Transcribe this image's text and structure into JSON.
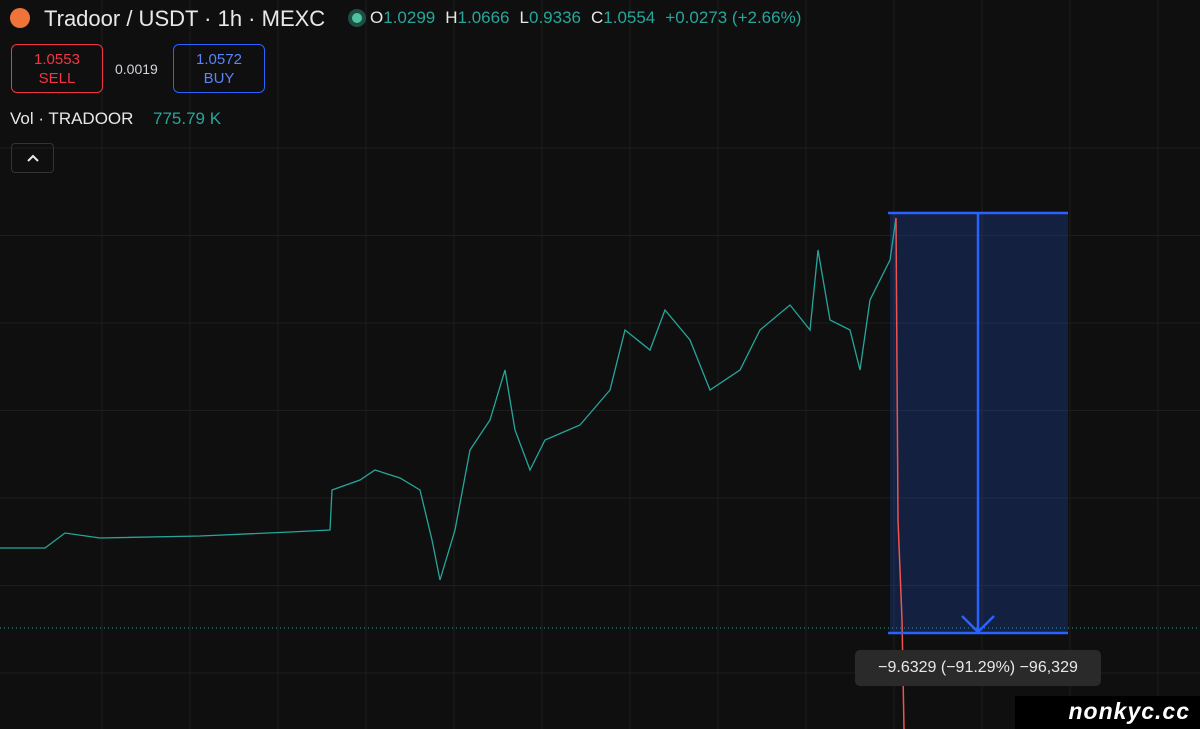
{
  "header": {
    "symbol": "Tradoor / USDT · 1h · MEXC",
    "ohlc": [
      {
        "label": "O",
        "value": "1.0299"
      },
      {
        "label": "H",
        "value": "1.0666"
      },
      {
        "label": "L",
        "value": "0.9336"
      },
      {
        "label": "C",
        "value": "1.0554"
      }
    ],
    "change": "+0.0273 (+2.66%)"
  },
  "trade": {
    "sell": {
      "price": "1.0553",
      "label": "SELL"
    },
    "spread": "0.0019",
    "buy": {
      "price": "1.0572",
      "label": "BUY"
    }
  },
  "volume": {
    "label": "Vol · TRADOOR",
    "value": "775.79 K"
  },
  "measure": {
    "label": "−9.6329 (−91.29%) −96,329"
  },
  "watermark": "nonkyc.cc"
}
